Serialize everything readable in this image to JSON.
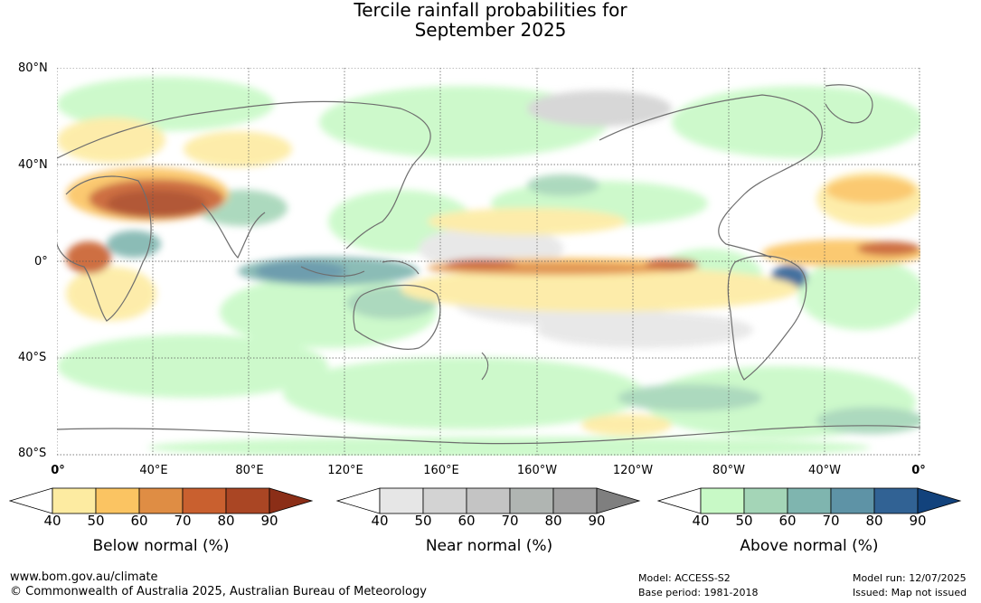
{
  "title": {
    "line1": "Tercile rainfall probabilities for",
    "line2": "September 2025"
  },
  "map": {
    "lat_labels": [
      "80°N",
      "40°N",
      "0°",
      "40°S",
      "80°S"
    ],
    "lon_labels": [
      "0°",
      "40°E",
      "80°E",
      "120°E",
      "160°E",
      "160°W",
      "120°W",
      "80°W",
      "40°W",
      "0°"
    ]
  },
  "colorbars": [
    {
      "name": "below",
      "title": "Below normal (%)",
      "ticks": [
        "40",
        "50",
        "60",
        "70",
        "80",
        "90"
      ],
      "colors": [
        "#ffffff",
        "#fdeba1",
        "#fbc462",
        "#df8d44",
        "#c9602f",
        "#aa4624",
        "#8b2e17"
      ]
    },
    {
      "name": "near",
      "title": "Near normal (%)",
      "ticks": [
        "40",
        "50",
        "60",
        "70",
        "80",
        "90"
      ],
      "colors": [
        "#ffffff",
        "#e6e6e6",
        "#d3d3d3",
        "#c4c4c4",
        "#b0b5b2",
        "#a1a1a1",
        "#7f7f7f"
      ]
    },
    {
      "name": "above",
      "title": "Above normal (%)",
      "ticks": [
        "40",
        "50",
        "60",
        "70",
        "80",
        "90"
      ],
      "colors": [
        "#ffffff",
        "#c8f9c6",
        "#a4d5b7",
        "#7fb5af",
        "#5e93a6",
        "#316294",
        "#12427c"
      ]
    }
  ],
  "footer": {
    "url": "www.bom.gov.au/climate",
    "copyright": "© Commonwealth of Australia 2025, Australian Bureau of Meteorology",
    "model": "Model: ACCESS-S2",
    "base_period": "Base period: 1981-2018",
    "model_run": "Model run: 12/07/2025",
    "issued": "Issued: Map not issued"
  }
}
